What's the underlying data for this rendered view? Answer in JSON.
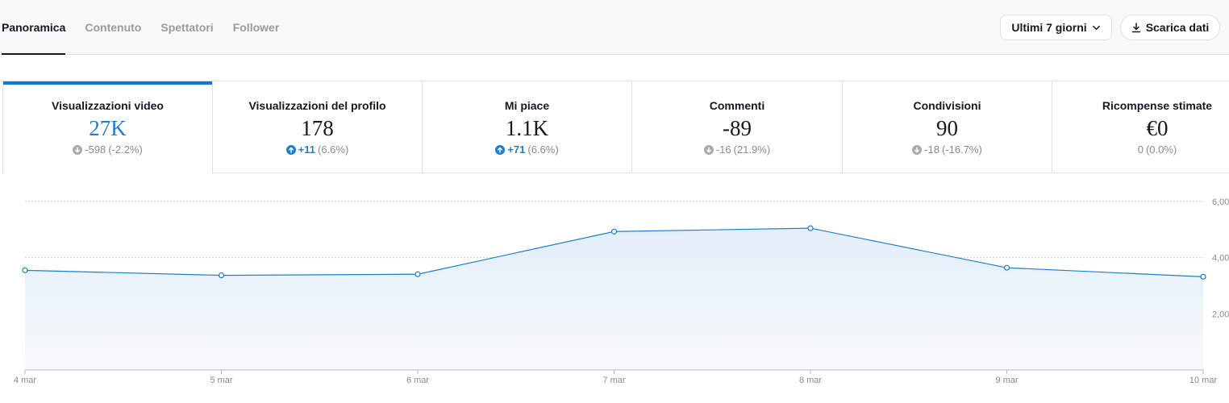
{
  "tabs": [
    {
      "label": "Panoramica",
      "active": true
    },
    {
      "label": "Contenuto",
      "active": false
    },
    {
      "label": "Spettatori",
      "active": false
    },
    {
      "label": "Follower",
      "active": false
    }
  ],
  "toolbar": {
    "range_label": "Ultimi 7 giorni",
    "download_label": "Scarica dati"
  },
  "metrics": [
    {
      "title": "Visualizzazioni video",
      "value": "27K",
      "delta": "-598",
      "delta_pct": "(-2.2%)",
      "trend": "down",
      "selected": true
    },
    {
      "title": "Visualizzazioni del profilo",
      "value": "178",
      "delta": "+11",
      "delta_pct": "(6.6%)",
      "trend": "up",
      "selected": false
    },
    {
      "title": "Mi piace",
      "value": "1.1K",
      "delta": "+71",
      "delta_pct": "(6.6%)",
      "trend": "up",
      "selected": false
    },
    {
      "title": "Commenti",
      "value": "-89",
      "delta": "-16",
      "delta_pct": "(21.9%)",
      "trend": "down",
      "selected": false
    },
    {
      "title": "Condivisioni",
      "value": "90",
      "delta": "-18",
      "delta_pct": "(-16.7%)",
      "trend": "down",
      "selected": false
    },
    {
      "title": "Ricompense stimate",
      "value": "€0",
      "delta": "0",
      "delta_pct": "(0.0%)",
      "trend": "none",
      "selected": false
    }
  ],
  "colors": {
    "accent": "#1c7fd1",
    "area_fill": "#e3eef9",
    "grid": "#c9c9cc",
    "text_muted": "#8a8b91"
  },
  "chart_data": {
    "type": "area",
    "x": [
      "4 mar",
      "5 mar",
      "6 mar",
      "7 mar",
      "8 mar",
      "9 mar",
      "10 mar"
    ],
    "series": [
      {
        "values": [
          3550,
          3370,
          3410,
          4930,
          5050,
          3640,
          3320
        ]
      }
    ],
    "yticks": [
      "2,00",
      "4,00",
      "6,00"
    ],
    "ylim": [
      0,
      6000
    ],
    "grid": true
  }
}
